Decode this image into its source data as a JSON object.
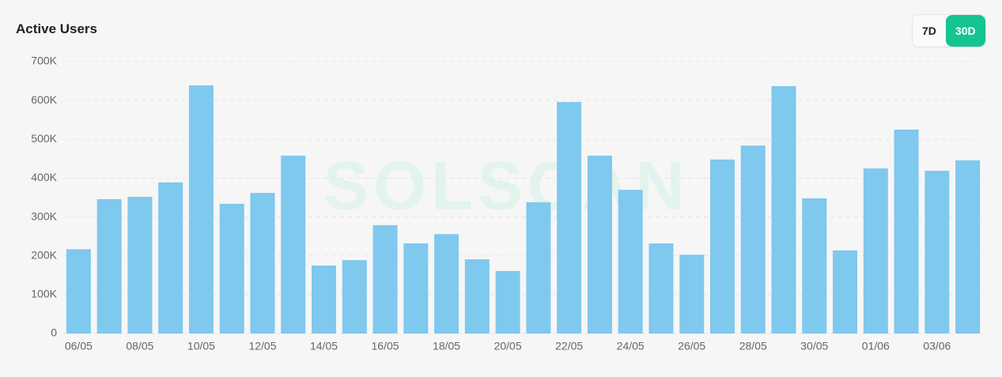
{
  "title": "Active Users",
  "range_options": [
    "7D",
    "30D"
  ],
  "chart_data": {
    "type": "bar",
    "watermark": "SOLSCAN",
    "categories": [
      "06/05",
      null,
      "08/05",
      null,
      "10/05",
      null,
      "12/05",
      null,
      "14/05",
      null,
      "16/05",
      null,
      "18/05",
      null,
      "20/05",
      null,
      "22/05",
      null,
      "24/05",
      null,
      "26/05",
      null,
      "28/05",
      null,
      "30/05",
      null,
      "01/06",
      null,
      "03/06",
      null
    ],
    "values": [
      217000,
      346000,
      352000,
      389000,
      639000,
      334000,
      362000,
      458000,
      175000,
      189000,
      279000,
      232000,
      256000,
      191000,
      161000,
      338000,
      596000,
      458000,
      370000,
      232000,
      203000,
      448000,
      484000,
      637000,
      348000,
      214000,
      425000,
      525000,
      419000,
      446000
    ],
    "color": "#7fc8ee",
    "ylim": [
      0,
      700000
    ],
    "yticks": [
      0,
      {
        "value": 100000,
        "label": "100K"
      },
      {
        "value": 200000,
        "label": "200K"
      },
      {
        "value": 300000,
        "label": "300K"
      },
      {
        "value": 400000,
        "label": "400K"
      },
      {
        "value": 500000,
        "label": "500K"
      },
      {
        "value": 600000,
        "label": "600K"
      },
      {
        "value": 700000,
        "label": "700K"
      }
    ],
    "grid": true
  }
}
